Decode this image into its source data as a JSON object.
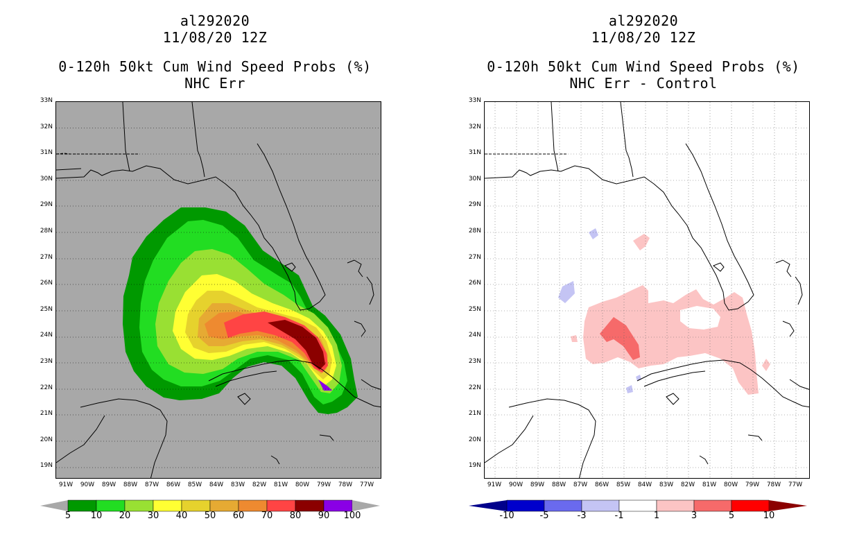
{
  "panels": [
    {
      "storm_id": "al292020",
      "date": "11/08/20 12Z",
      "product": "0-120h 50kt Cum Wind Speed Probs (%)",
      "subtitle": "NHC Err",
      "background": "#a8a8a8"
    },
    {
      "storm_id": "al292020",
      "date": "11/08/20 12Z",
      "product": "0-120h 50kt Cum Wind Speed Probs (%)",
      "subtitle": "NHC Err - Control",
      "background": "#ffffff"
    }
  ],
  "lat_labels": [
    "33N",
    "32N",
    "31N",
    "30N",
    "29N",
    "28N",
    "27N",
    "26N",
    "25N",
    "24N",
    "23N",
    "22N",
    "21N",
    "20N",
    "19N"
  ],
  "lon_labels": [
    "91W",
    "90W",
    "89W",
    "88W",
    "87W",
    "86W",
    "85W",
    "84W",
    "83W",
    "82W",
    "81W",
    "80W",
    "79W",
    "78W",
    "77W"
  ],
  "colorbar_left": {
    "labels": [
      "5",
      "10",
      "20",
      "30",
      "40",
      "50",
      "60",
      "70",
      "80",
      "90",
      "100"
    ],
    "colors": [
      "#009900",
      "#22dd22",
      "#99e033",
      "#ffff33",
      "#e6d22d",
      "#e6aa33",
      "#ee8a30",
      "#ff4444",
      "#8b0000",
      "#8a00e6"
    ],
    "end_color": "#a8a8a8"
  },
  "colorbar_right": {
    "labels": [
      "-10",
      "-5",
      "-3",
      "-1",
      "1",
      "3",
      "5",
      "10"
    ],
    "colors": [
      "#0000cc",
      "#6a6aee",
      "#c4c4f4",
      "#ffffff",
      "#fcc4c4",
      "#f66a6a",
      "#ff0000"
    ],
    "low_color": "#00008b",
    "high_color": "#8b0000"
  }
}
